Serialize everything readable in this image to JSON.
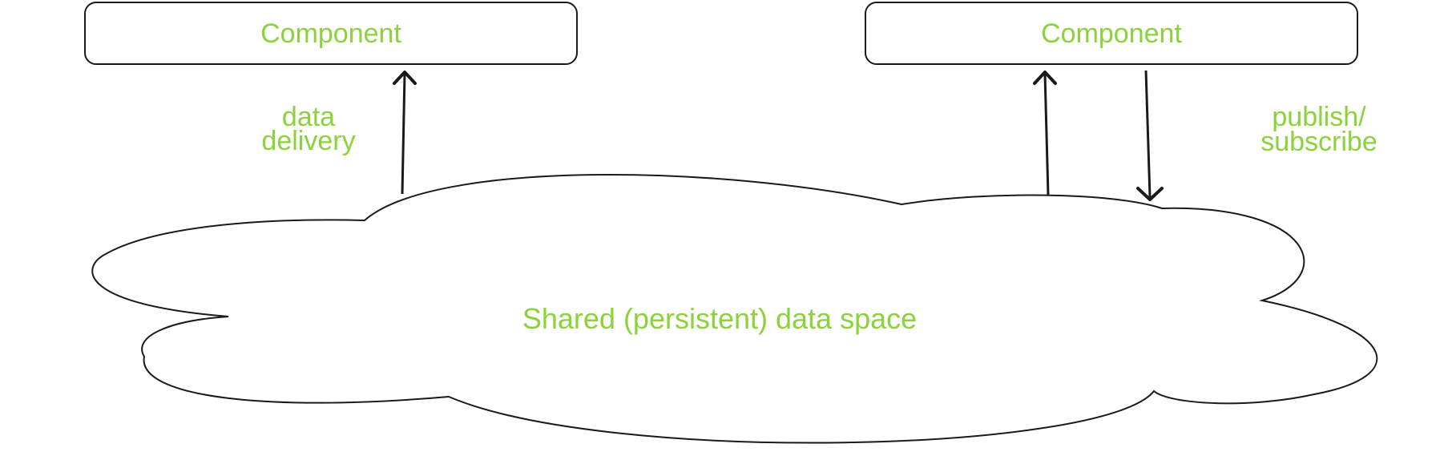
{
  "diagram": {
    "left_component": {
      "label": "Component"
    },
    "right_component": {
      "label": "Component"
    },
    "data_delivery": {
      "line1": "data",
      "line2": "delivery"
    },
    "publish_subscribe": {
      "line1": "publish/",
      "line2": "subscribe"
    },
    "shared_space": {
      "label": "Shared (persistent) data space"
    }
  },
  "colors": {
    "label_text": "#8cd23c",
    "outline": "#1a1a1a",
    "background": "#ffffff"
  }
}
